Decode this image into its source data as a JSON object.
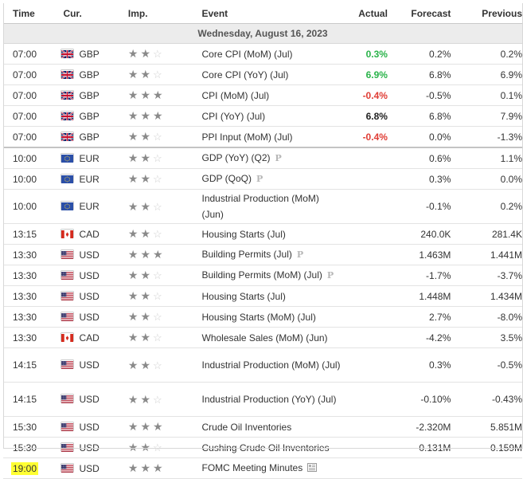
{
  "header": {
    "time": "Time",
    "currency": "Cur.",
    "importance": "Imp.",
    "event": "Event",
    "actual": "Actual",
    "forecast": "Forecast",
    "previous": "Previous"
  },
  "date_label": "Wednesday, August 16, 2023",
  "colors": {
    "positive": "#2ab34a",
    "negative": "#e03d35",
    "highlight": "#ffff33",
    "date_row_bg": "#ececec"
  },
  "rows": [
    {
      "time": "07:00",
      "currency": "GBP",
      "flag": "uk-flag",
      "stars": 2,
      "event": "Core CPI (MoM) (Jul)",
      "actual": "0.3%",
      "actual_status": "positive",
      "forecast": "0.2%",
      "previous": "0.2%"
    },
    {
      "time": "07:00",
      "currency": "GBP",
      "flag": "uk-flag",
      "stars": 2,
      "event": "Core CPI (YoY) (Jul)",
      "actual": "6.9%",
      "actual_status": "positive",
      "forecast": "6.8%",
      "previous": "6.9%"
    },
    {
      "time": "07:00",
      "currency": "GBP",
      "flag": "uk-flag",
      "stars": 3,
      "event": "CPI (MoM) (Jul)",
      "actual": "-0.4%",
      "actual_status": "negative",
      "forecast": "-0.5%",
      "previous": "0.1%"
    },
    {
      "time": "07:00",
      "currency": "GBP",
      "flag": "uk-flag",
      "stars": 3,
      "event": "CPI (YoY) (Jul)",
      "actual": "6.8%",
      "actual_status": "neutral",
      "forecast": "6.8%",
      "previous": "7.9%"
    },
    {
      "time": "07:00",
      "currency": "GBP",
      "flag": "uk-flag",
      "stars": 2,
      "event": "PPI Input (MoM) (Jul)",
      "actual": "-0.4%",
      "actual_status": "negative",
      "forecast": "0.0%",
      "previous": "-1.3%"
    },
    {
      "time": "10:00",
      "currency": "EUR",
      "flag": "eu-flag",
      "stars": 2,
      "event": "GDP (YoY) (Q2)",
      "preliminary": true,
      "actual": "",
      "forecast": "0.6%",
      "previous": "1.1%"
    },
    {
      "time": "10:00",
      "currency": "EUR",
      "flag": "eu-flag",
      "stars": 2,
      "event": "GDP (QoQ)",
      "preliminary": true,
      "actual": "",
      "forecast": "0.3%",
      "previous": "0.0%"
    },
    {
      "time": "10:00",
      "currency": "EUR",
      "flag": "eu-flag",
      "stars": 2,
      "event": "Industrial Production (MoM) (Jun)",
      "actual": "",
      "forecast": "-0.1%",
      "previous": "0.2%"
    },
    {
      "time": "13:15",
      "currency": "CAD",
      "flag": "canada-flag",
      "stars": 2,
      "event": "Housing Starts (Jul)",
      "actual": "",
      "forecast": "240.0K",
      "previous": "281.4K"
    },
    {
      "time": "13:30",
      "currency": "USD",
      "flag": "us-flag",
      "stars": 3,
      "event": "Building Permits (Jul)",
      "preliminary": true,
      "actual": "",
      "forecast": "1.463M",
      "previous": "1.441M"
    },
    {
      "time": "13:30",
      "currency": "USD",
      "flag": "us-flag",
      "stars": 2,
      "event": "Building Permits (MoM) (Jul)",
      "preliminary": true,
      "actual": "",
      "forecast": "-1.7%",
      "previous": "-3.7%"
    },
    {
      "time": "13:30",
      "currency": "USD",
      "flag": "us-flag",
      "stars": 2,
      "event": "Housing Starts (Jul)",
      "actual": "",
      "forecast": "1.448M",
      "previous": "1.434M"
    },
    {
      "time": "13:30",
      "currency": "USD",
      "flag": "us-flag",
      "stars": 2,
      "event": "Housing Starts (MoM) (Jul)",
      "actual": "",
      "forecast": "2.7%",
      "previous": "-8.0%"
    },
    {
      "time": "13:30",
      "currency": "CAD",
      "flag": "canada-flag",
      "stars": 2,
      "event": "Wholesale Sales (MoM) (Jun)",
      "actual": "",
      "forecast": "-4.2%",
      "previous": "3.5%"
    },
    {
      "time": "14:15",
      "currency": "USD",
      "flag": "us-flag",
      "stars": 2,
      "event": "Industrial Production (MoM) (Jul)",
      "actual": "",
      "forecast": "0.3%",
      "previous": "-0.5%"
    },
    {
      "time": "14:15",
      "currency": "USD",
      "flag": "us-flag",
      "stars": 2,
      "event": "Industrial Production (YoY) (Jul)",
      "actual": "",
      "forecast": "-0.10%",
      "previous": "-0.43%"
    },
    {
      "time": "15:30",
      "currency": "USD",
      "flag": "us-flag",
      "stars": 3,
      "event": "Crude Oil Inventories",
      "actual": "",
      "forecast": "-2.320M",
      "previous": "5.851M"
    },
    {
      "time": "15:30",
      "currency": "USD",
      "flag": "us-flag",
      "stars": 2,
      "event": "Cushing Crude Oil Inventories",
      "actual": "",
      "forecast": "0.131M",
      "previous": "0.159M"
    },
    {
      "time": "19:00",
      "currency": "USD",
      "flag": "us-flag",
      "stars": 3,
      "event": "FOMC Meeting Minutes",
      "document": true,
      "highlight_time": true,
      "actual": "",
      "forecast": "",
      "previous": ""
    }
  ],
  "preliminary_mark": "P"
}
